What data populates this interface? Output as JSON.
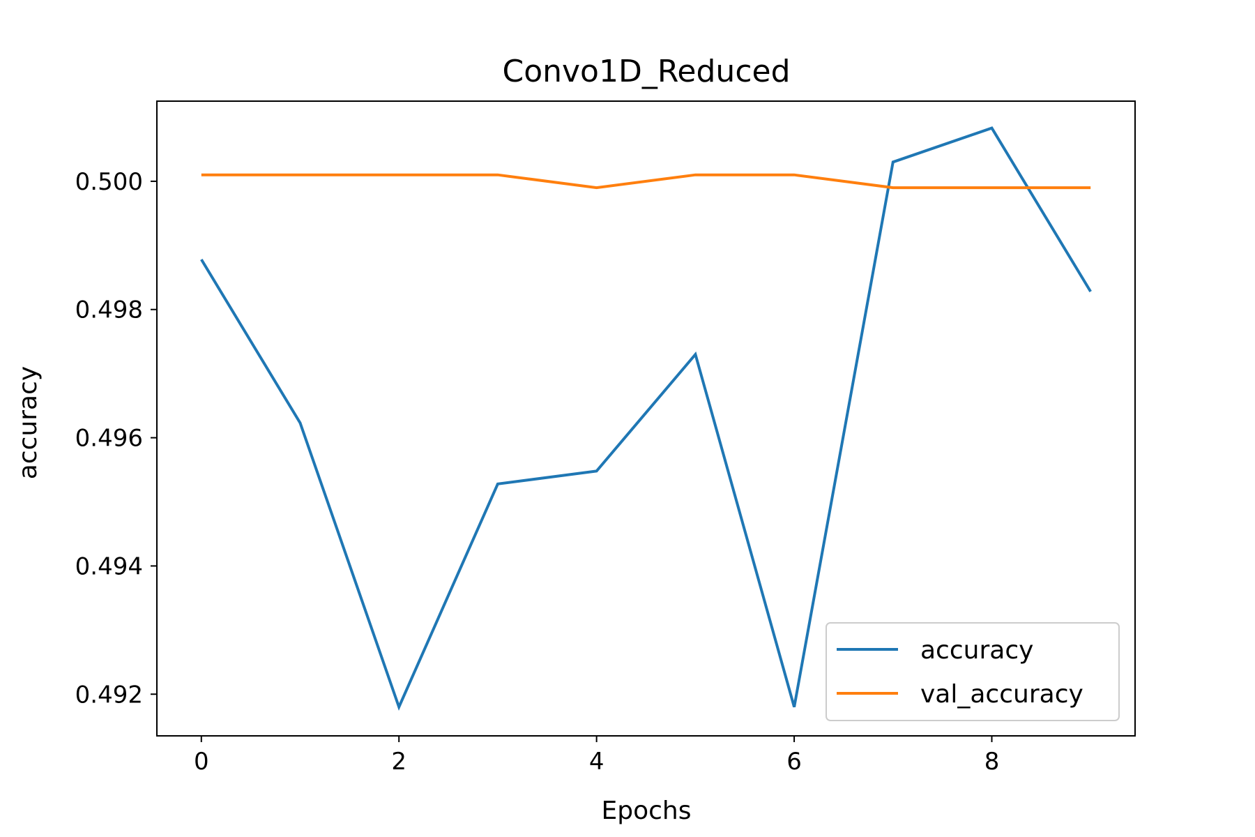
{
  "chart_data": {
    "type": "line",
    "title": "Convo1D_Reduced",
    "xlabel": "Epochs",
    "ylabel": "accuracy",
    "x": [
      0,
      1,
      2,
      3,
      4,
      5,
      6,
      7,
      8,
      9
    ],
    "xticks": [
      0,
      2,
      4,
      6,
      8
    ],
    "xtick_labels": [
      "0",
      "2",
      "4",
      "6",
      "8"
    ],
    "xlim": [
      -0.45,
      9.45
    ],
    "yticks": [
      0.492,
      0.494,
      0.496,
      0.498,
      0.5
    ],
    "ytick_labels": [
      "0.492",
      "0.494",
      "0.496",
      "0.498",
      "0.500"
    ],
    "ylim": [
      0.49135,
      0.50125
    ],
    "grid": false,
    "legend_position": "lower-right",
    "series": [
      {
        "name": "accuracy",
        "color": "#1f77b4",
        "values": [
          0.49878,
          0.49623,
          0.4918,
          0.49528,
          0.49548,
          0.4973,
          0.4918,
          0.5003,
          0.50083,
          0.49828
        ]
      },
      {
        "name": "val_accuracy",
        "color": "#ff7f0e",
        "values": [
          0.5001,
          0.5001,
          0.5001,
          0.5001,
          0.4999,
          0.5001,
          0.5001,
          0.4999,
          0.4999,
          0.4999
        ]
      }
    ]
  }
}
